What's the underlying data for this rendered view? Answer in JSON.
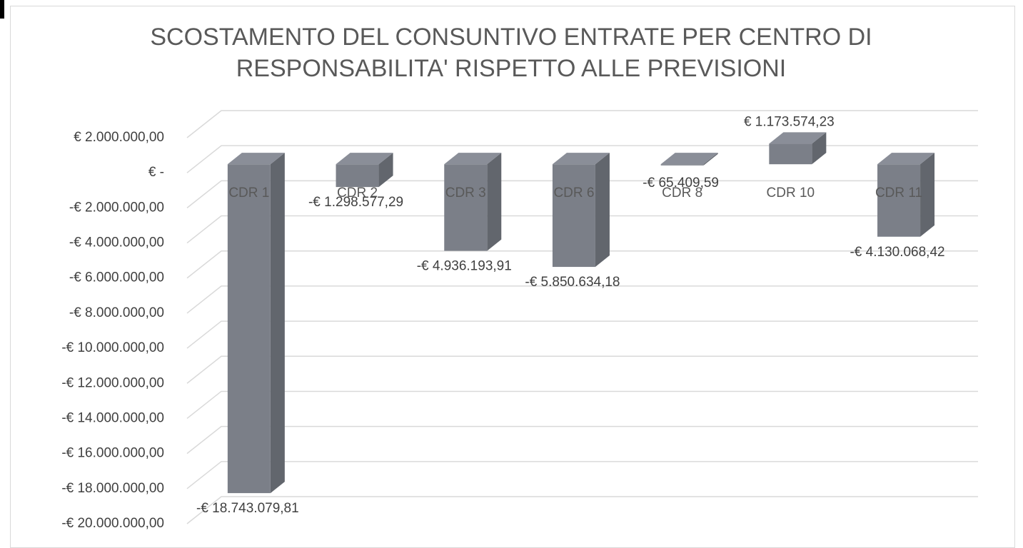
{
  "chart_data": {
    "type": "bar3d",
    "title": "SCOSTAMENTO DEL CONSUNTIVO ENTRATE PER CENTRO DI RESPONSABILITA' RISPETTO ALLE PREVISIONI",
    "categories": [
      "CDR 1",
      "CDR 2",
      "CDR 3",
      "CDR 6",
      "CDR 8",
      "CDR 10",
      "CDR 11"
    ],
    "values": [
      -18743079.81,
      -1298577.29,
      -4936193.91,
      -5850634.18,
      -65409.59,
      1173574.23,
      -4130068.42
    ],
    "value_labels": [
      "-€ 18.743.079,81",
      "-€ 1.298.577,29",
      "-€ 4.936.193,91",
      "-€ 5.850.634,18",
      "-€ 65.409,59",
      "€ 1.173.574,23",
      "-€ 4.130.068,42"
    ],
    "color": "#7b7f88",
    "ylim": [
      -20000000,
      2000000
    ],
    "yticks": [
      {
        "value": 2000000,
        "label": "€ 2.000.000,00"
      },
      {
        "value": 0,
        "label": "€ -"
      },
      {
        "value": -2000000,
        "label": "-€ 2.000.000,00"
      },
      {
        "value": -4000000,
        "label": "-€ 4.000.000,00"
      },
      {
        "value": -6000000,
        "label": "-€ 6.000.000,00"
      },
      {
        "value": -8000000,
        "label": "-€ 8.000.000,00"
      },
      {
        "value": -10000000,
        "label": "-€ 10.000.000,00"
      },
      {
        "value": -12000000,
        "label": "-€ 12.000.000,00"
      },
      {
        "value": -14000000,
        "label": "-€ 14.000.000,00"
      },
      {
        "value": -16000000,
        "label": "-€ 16.000.000,00"
      },
      {
        "value": -18000000,
        "label": "-€ 18.000.000,00"
      },
      {
        "value": -20000000,
        "label": "-€ 20.000.000,00"
      }
    ],
    "grid": true
  }
}
